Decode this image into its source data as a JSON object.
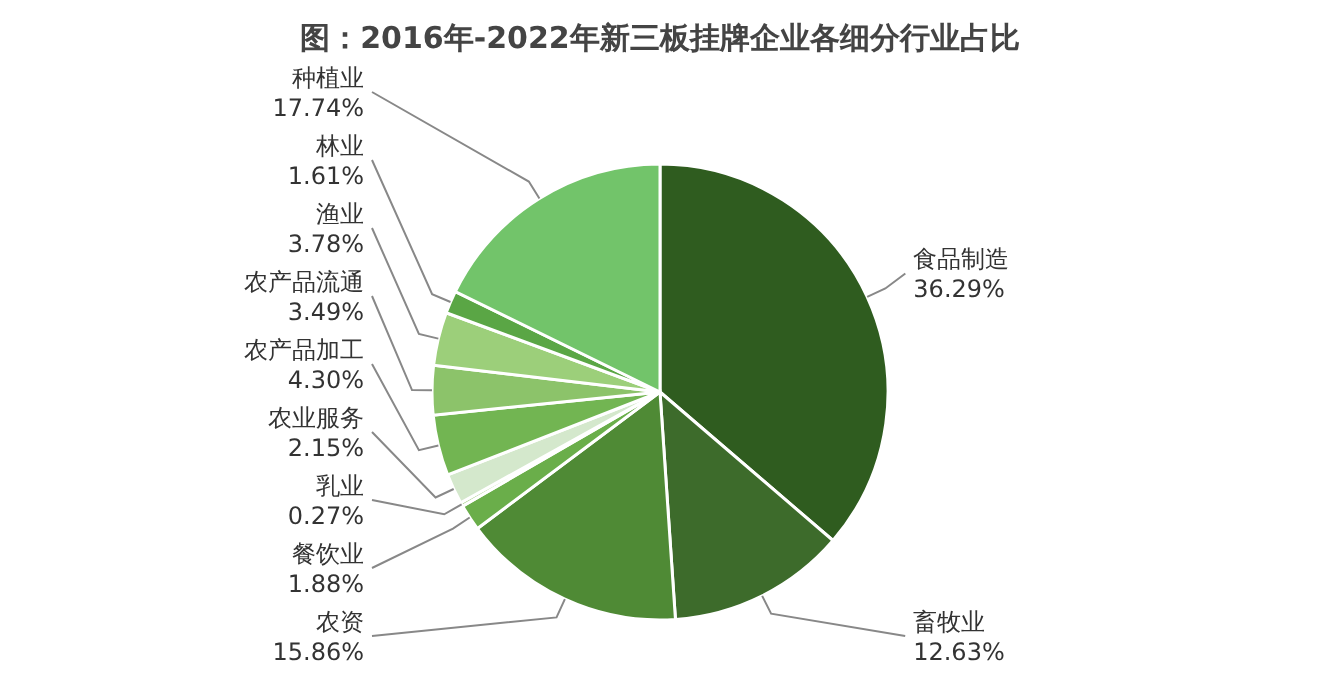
{
  "chart_data": {
    "type": "pie",
    "title": "图：2016年-2022年新三板挂牌企业各细分行业占比",
    "categories": [
      "食品制造",
      "畜牧业",
      "农资",
      "餐饮业",
      "乳业",
      "农业服务",
      "农产品加工",
      "农产品流通",
      "渔业",
      "林业",
      "种植业"
    ],
    "values": [
      36.29,
      12.63,
      15.86,
      1.88,
      0.27,
      2.15,
      4.3,
      3.49,
      3.78,
      1.61,
      17.74
    ],
    "colors": [
      "#2f5c1f",
      "#3d6b2b",
      "#4f8a35",
      "#6aae4a",
      "#a9d08e",
      "#d4e8cc",
      "#72b552",
      "#8cc36a",
      "#9ccf7a",
      "#5aa645",
      "#72c46a"
    ],
    "value_labels": [
      "36.29%",
      "12.63%",
      "15.86%",
      "1.88%",
      "0.27%",
      "2.15%",
      "4.30%",
      "3.49%",
      "3.78%",
      "1.61%",
      "17.74%"
    ]
  }
}
